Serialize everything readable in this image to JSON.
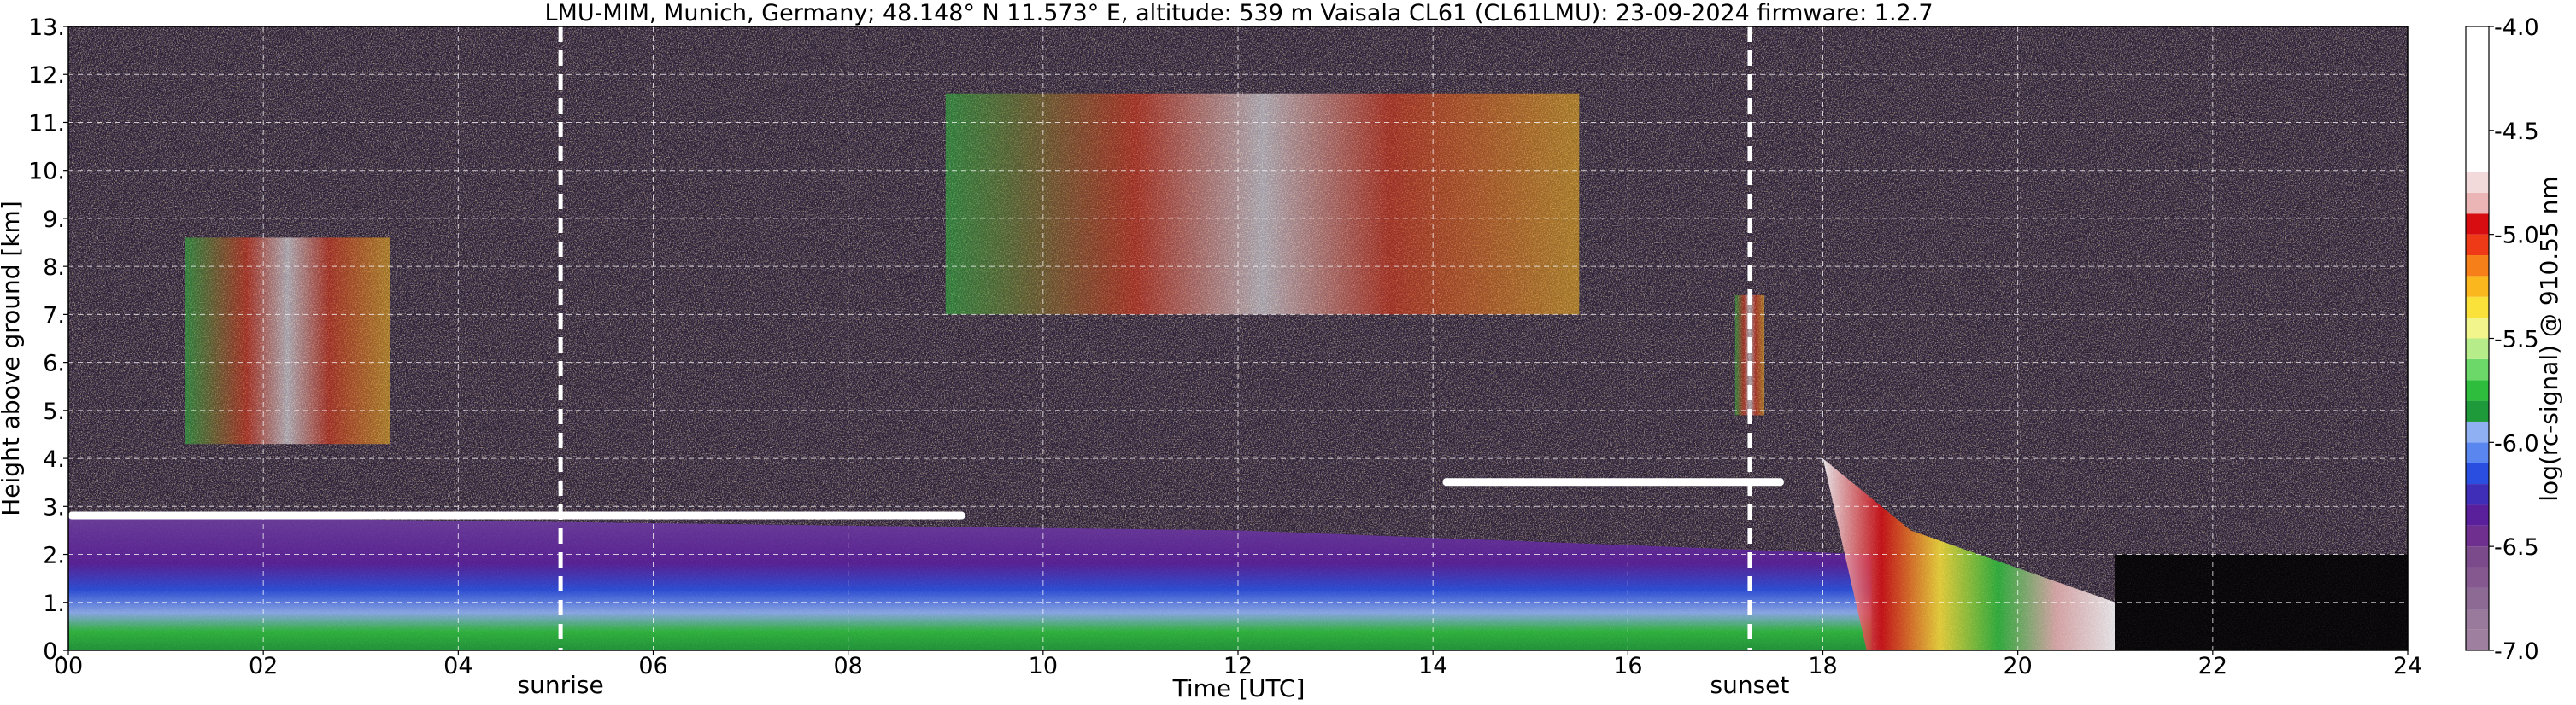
{
  "chart_data": {
    "type": "heatmap",
    "title": "LMU-MIM, Munich, Germany; 48.148° N 11.573° E, altitude: 539 m    Vaisala CL61 (CL61LMU): 23-09-2024    firmware: 1.2.7",
    "xlabel": "Time [UTC]",
    "ylabel": "Height above ground [km]",
    "xlim": [
      0,
      24
    ],
    "ylim": [
      0,
      13
    ],
    "grid": true,
    "x_ticks": [
      "00",
      "02",
      "04",
      "06",
      "08",
      "10",
      "12",
      "14",
      "16",
      "18",
      "20",
      "22",
      "24"
    ],
    "y_ticks": [
      "0.",
      "1.",
      "2.",
      "3.",
      "4.",
      "5.",
      "6.",
      "7.",
      "8.",
      "9.",
      "10.",
      "11.",
      "12.",
      "13."
    ],
    "markers": [
      {
        "label": "sunrise",
        "time": 5.05
      },
      {
        "label": "sunset",
        "time": 17.25
      }
    ],
    "colorbar": {
      "label": "log(rc-signal) @ 910.55 nm",
      "range": [
        -7.0,
        -4.0
      ],
      "ticks": [
        "-4.0",
        "-4.5",
        "-5.0",
        "-5.5",
        "-6.0",
        "-6.5",
        "-7.0"
      ],
      "tick_values": [
        -4.0,
        -4.5,
        -5.0,
        -5.5,
        -6.0,
        -6.5,
        -7.0
      ],
      "levels": [
        {
          "from": -7.0,
          "to": -6.9,
          "color": "#9e7fa0"
        },
        {
          "from": -6.9,
          "to": -6.8,
          "color": "#997a9c"
        },
        {
          "from": -6.8,
          "to": -6.7,
          "color": "#8c6a93"
        },
        {
          "from": -6.7,
          "to": -6.6,
          "color": "#85588f"
        },
        {
          "from": -6.6,
          "to": -6.5,
          "color": "#7a4a8a"
        },
        {
          "from": -6.5,
          "to": -6.4,
          "color": "#6e2f8e"
        },
        {
          "from": -6.4,
          "to": -6.3,
          "color": "#5a1f9a"
        },
        {
          "from": -6.3,
          "to": -6.2,
          "color": "#3f2fb8"
        },
        {
          "from": -6.2,
          "to": -6.1,
          "color": "#2a4fe0"
        },
        {
          "from": -6.1,
          "to": -6.0,
          "color": "#5a86f0"
        },
        {
          "from": -6.0,
          "to": -5.9,
          "color": "#8fb0f2"
        },
        {
          "from": -5.9,
          "to": -5.8,
          "color": "#1f9a3a"
        },
        {
          "from": -5.8,
          "to": -5.7,
          "color": "#2ebd3c"
        },
        {
          "from": -5.7,
          "to": -5.6,
          "color": "#6cd86a"
        },
        {
          "from": -5.6,
          "to": -5.5,
          "color": "#b6ec8a"
        },
        {
          "from": -5.5,
          "to": -5.4,
          "color": "#f2f58c"
        },
        {
          "from": -5.4,
          "to": -5.3,
          "color": "#fbe23a"
        },
        {
          "from": -5.3,
          "to": -5.2,
          "color": "#fbb81e"
        },
        {
          "from": -5.2,
          "to": -5.1,
          "color": "#f77f1a"
        },
        {
          "from": -5.1,
          "to": -5.0,
          "color": "#ee3a16"
        },
        {
          "from": -5.0,
          "to": -4.9,
          "color": "#d70d12"
        },
        {
          "from": -4.9,
          "to": -4.8,
          "color": "#ecb5b5"
        },
        {
          "from": -4.8,
          "to": -4.7,
          "color": "#f3dada"
        },
        {
          "from": -4.7,
          "to": -4.0,
          "color": "#ffffff"
        }
      ]
    },
    "features": [
      {
        "kind": "boundary_layer",
        "description_values": {
          "top_km_start": 2.8,
          "top_km_end": 2.0
        }
      },
      {
        "kind": "cloud_layer",
        "time": [
          0.0,
          9.2
        ],
        "height_km": 2.8
      },
      {
        "kind": "cirrus",
        "time": [
          1.2,
          3.3
        ],
        "height_km": [
          4.3,
          8.6
        ]
      },
      {
        "kind": "cirrus",
        "time": [
          9.0,
          15.5
        ],
        "height_km": [
          7.0,
          11.6
        ]
      },
      {
        "kind": "cirrus",
        "time": [
          17.1,
          17.4
        ],
        "height_km": [
          4.9,
          7.4
        ]
      },
      {
        "kind": "cloud_layer",
        "time": [
          14.1,
          17.6
        ],
        "height_km": 3.5
      },
      {
        "kind": "precipitation",
        "time": [
          18.0,
          21.0
        ],
        "height_km": [
          0.0,
          4.0
        ]
      }
    ]
  }
}
